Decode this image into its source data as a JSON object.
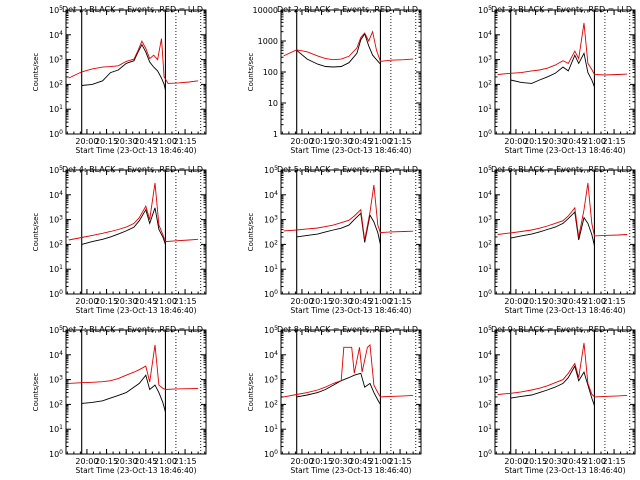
{
  "figure": {
    "x_axis_label": "Start Time (23-Oct-13 18:46:40)",
    "x_tick_labels": [
      "20:00",
      "20:15",
      "20:30",
      "20:45",
      "21:00",
      "21:15"
    ],
    "series_colors": {
      "events": "#000000",
      "lld": "#e00000"
    },
    "marker_lines": {
      "solid": [
        "19:56",
        "21:00"
      ],
      "dotted": [
        "21:08",
        "21:27"
      ]
    }
  },
  "chart_data": [
    {
      "type": "line",
      "title": "Det 1: BLACK = Events, RED = LLD",
      "ylabel": "Counts/sec",
      "yscale": "log",
      "ylim": [
        1,
        100000
      ],
      "ytick_labels": [
        "10^0",
        "10^1",
        "10^2",
        "10^3",
        "10^4",
        "10^5"
      ],
      "xlim": [
        "19:44",
        "21:31"
      ],
      "series": [
        {
          "name": "Events",
          "color": "#000000",
          "x": [
            "19:56",
            "20:04",
            "20:12",
            "20:18",
            "20:24",
            "20:30",
            "20:36",
            "20:39",
            "20:42",
            "20:45",
            "20:48",
            "20:51",
            "20:54",
            "20:57",
            "20:59",
            "21:00"
          ],
          "values": [
            90,
            100,
            140,
            300,
            380,
            700,
            900,
            2000,
            4000,
            2000,
            800,
            500,
            350,
            180,
            100,
            60
          ]
        },
        {
          "name": "LLD",
          "color": "#e00000",
          "x": [
            "19:46",
            "19:56",
            "20:04",
            "20:12",
            "20:18",
            "20:24",
            "20:30",
            "20:36",
            "20:39",
            "20:42",
            "20:45",
            "20:48",
            "20:51",
            "20:54",
            "20:57",
            "20:59",
            "21:02",
            "21:10",
            "21:18",
            "21:25"
          ],
          "values": [
            180,
            320,
            420,
            500,
            520,
            560,
            850,
            1050,
            2300,
            5500,
            2800,
            1100,
            1500,
            1000,
            7000,
            200,
            110,
            115,
            125,
            140
          ]
        }
      ]
    },
    {
      "type": "line",
      "title": "Det 2: BLACK = Events, RED = LLD",
      "ylabel": "Counts/sec",
      "yscale": "log",
      "ylim": [
        1,
        10000
      ],
      "ytick_labels": [
        "1",
        "10",
        "100",
        "1000",
        "10000"
      ],
      "xlim": [
        "19:44",
        "21:31"
      ],
      "series": [
        {
          "name": "Events",
          "color": "#000000",
          "x": [
            "19:56",
            "20:04",
            "20:12",
            "20:18",
            "20:24",
            "20:30",
            "20:36",
            "20:42",
            "20:45",
            "20:48",
            "20:51",
            "20:54",
            "20:57",
            "21:00"
          ],
          "values": [
            500,
            260,
            180,
            150,
            145,
            150,
            200,
            400,
            1100,
            1700,
            700,
            350,
            250,
            180
          ]
        },
        {
          "name": "LLD",
          "color": "#e00000",
          "x": [
            "19:46",
            "19:56",
            "20:04",
            "20:12",
            "20:18",
            "20:24",
            "20:30",
            "20:36",
            "20:42",
            "20:45",
            "20:48",
            "20:51",
            "20:54",
            "20:57",
            "21:00",
            "21:08",
            "21:18",
            "21:25"
          ],
          "values": [
            330,
            520,
            450,
            330,
            270,
            250,
            260,
            320,
            600,
            1300,
            1800,
            1000,
            2000,
            500,
            220,
            240,
            250,
            260
          ]
        }
      ]
    },
    {
      "type": "line",
      "title": "Det 3: BLACK = Events, RED = LLD",
      "ylabel": "",
      "yscale": "log",
      "ylim": [
        1,
        100000
      ],
      "ytick_labels": [
        "10^0",
        "10^1",
        "10^2",
        "10^3",
        "10^4",
        "10^5"
      ],
      "xlim": [
        "19:44",
        "21:31"
      ],
      "series": [
        {
          "name": "Events",
          "color": "#000000",
          "x": [
            "19:56",
            "20:04",
            "20:12",
            "20:18",
            "20:24",
            "20:30",
            "20:36",
            "20:40",
            "20:45",
            "20:48",
            "20:52",
            "20:55",
            "20:58",
            "21:00"
          ],
          "values": [
            150,
            120,
            110,
            150,
            200,
            280,
            500,
            350,
            1500,
            700,
            1800,
            300,
            150,
            80
          ]
        },
        {
          "name": "LLD",
          "color": "#e00000",
          "x": [
            "19:46",
            "19:56",
            "20:04",
            "20:12",
            "20:18",
            "20:24",
            "20:30",
            "20:36",
            "20:40",
            "20:45",
            "20:48",
            "20:52",
            "20:55",
            "20:58",
            "21:00",
            "21:08",
            "21:18",
            "21:25"
          ],
          "values": [
            250,
            280,
            300,
            350,
            380,
            450,
            600,
            900,
            700,
            2200,
            1100,
            30000,
            700,
            400,
            250,
            240,
            250,
            260
          ]
        }
      ]
    },
    {
      "type": "line",
      "title": "Det 4: BLACK = Events, RED = LLD",
      "ylabel": "Counts/sec",
      "yscale": "log",
      "ylim": [
        1,
        100000
      ],
      "ytick_labels": [
        "10^0",
        "10^1",
        "10^2",
        "10^3",
        "10^4",
        "10^5"
      ],
      "xlim": [
        "19:44",
        "21:31"
      ],
      "series": [
        {
          "name": "Events",
          "color": "#000000",
          "x": [
            "19:56",
            "20:04",
            "20:12",
            "20:18",
            "20:24",
            "20:30",
            "20:36",
            "20:40",
            "20:45",
            "20:48",
            "20:52",
            "20:55",
            "20:58",
            "21:00"
          ],
          "values": [
            100,
            130,
            160,
            200,
            260,
            350,
            500,
            900,
            2500,
            700,
            3000,
            400,
            200,
            100
          ]
        },
        {
          "name": "LLD",
          "color": "#e00000",
          "x": [
            "19:46",
            "19:56",
            "20:04",
            "20:12",
            "20:18",
            "20:24",
            "20:30",
            "20:36",
            "20:40",
            "20:45",
            "20:48",
            "20:52",
            "20:55",
            "20:58",
            "21:00",
            "21:08",
            "21:18",
            "21:25"
          ],
          "values": [
            150,
            190,
            230,
            280,
            330,
            400,
            500,
            700,
            1200,
            3500,
            1000,
            30000,
            600,
            250,
            130,
            140,
            150,
            160
          ]
        }
      ]
    },
    {
      "type": "line",
      "title": "Det 5: BLACK = Events, RED = LLD",
      "ylabel": "Counts/sec",
      "yscale": "log",
      "ylim": [
        1,
        100000
      ],
      "ytick_labels": [
        "10^0",
        "10^1",
        "10^2",
        "10^3",
        "10^4",
        "10^5"
      ],
      "xlim": [
        "19:44",
        "21:31"
      ],
      "series": [
        {
          "name": "Events",
          "color": "#000000",
          "x": [
            "19:56",
            "20:04",
            "20:12",
            "20:18",
            "20:24",
            "20:30",
            "20:36",
            "20:40",
            "20:45",
            "20:48",
            "20:52",
            "20:55",
            "20:58",
            "21:00"
          ],
          "values": [
            200,
            230,
            260,
            320,
            380,
            450,
            600,
            1000,
            1800,
            120,
            1500,
            800,
            300,
            100
          ]
        },
        {
          "name": "LLD",
          "color": "#e00000",
          "x": [
            "19:46",
            "19:56",
            "20:04",
            "20:12",
            "20:18",
            "20:24",
            "20:30",
            "20:36",
            "20:40",
            "20:45",
            "20:48",
            "20:52",
            "20:55",
            "20:58",
            "21:00",
            "21:08",
            "21:18",
            "21:25"
          ],
          "values": [
            350,
            380,
            420,
            460,
            520,
            600,
            750,
            950,
            1400,
            2500,
            150,
            2000,
            25000,
            600,
            300,
            320,
            330,
            340
          ]
        }
      ]
    },
    {
      "type": "line",
      "title": "Det 6: BLACK = Events, RED = LLD",
      "ylabel": "",
      "yscale": "log",
      "ylim": [
        1,
        100000
      ],
      "ytick_labels": [
        "10^0",
        "10^1",
        "10^2",
        "10^3",
        "10^4",
        "10^5"
      ],
      "xlim": [
        "19:44",
        "21:31"
      ],
      "series": [
        {
          "name": "Events",
          "color": "#000000",
          "x": [
            "19:56",
            "20:04",
            "20:12",
            "20:18",
            "20:24",
            "20:30",
            "20:36",
            "20:40",
            "20:45",
            "20:48",
            "20:52",
            "20:55",
            "20:58",
            "21:00"
          ],
          "values": [
            180,
            220,
            260,
            320,
            400,
            500,
            700,
            1100,
            2000,
            150,
            1200,
            700,
            250,
            90
          ]
        },
        {
          "name": "LLD",
          "color": "#e00000",
          "x": [
            "19:46",
            "19:56",
            "20:04",
            "20:12",
            "20:18",
            "20:24",
            "20:30",
            "20:36",
            "20:40",
            "20:45",
            "20:48",
            "20:52",
            "20:55",
            "20:58",
            "21:00",
            "21:08",
            "21:18",
            "21:25"
          ],
          "values": [
            250,
            290,
            330,
            380,
            450,
            550,
            700,
            900,
            1400,
            3000,
            200,
            2500,
            30000,
            700,
            220,
            230,
            240,
            250
          ]
        }
      ]
    },
    {
      "type": "line",
      "title": "Det 7: BLACK = Events, RED = LLD",
      "ylabel": "Counts/sec",
      "yscale": "log",
      "ylim": [
        1,
        100000
      ],
      "ytick_labels": [
        "10^0",
        "10^1",
        "10^2",
        "10^3",
        "10^4",
        "10^5"
      ],
      "xlim": [
        "19:44",
        "21:31"
      ],
      "series": [
        {
          "name": "Events",
          "color": "#000000",
          "x": [
            "19:56",
            "20:04",
            "20:12",
            "20:18",
            "20:24",
            "20:30",
            "20:36",
            "20:40",
            "20:45",
            "20:48",
            "20:52",
            "20:55",
            "20:58",
            "21:00"
          ],
          "values": [
            110,
            120,
            140,
            180,
            230,
            300,
            500,
            700,
            1500,
            400,
            600,
            300,
            120,
            50
          ]
        },
        {
          "name": "LLD",
          "color": "#e00000",
          "x": [
            "19:46",
            "19:56",
            "20:04",
            "20:12",
            "20:18",
            "20:24",
            "20:30",
            "20:36",
            "20:40",
            "20:45",
            "20:48",
            "20:52",
            "20:55",
            "20:58",
            "21:00",
            "21:08",
            "21:18",
            "21:25"
          ],
          "values": [
            700,
            750,
            780,
            820,
            900,
            1100,
            1500,
            2000,
            2500,
            3500,
            800,
            25000,
            600,
            450,
            400,
            420,
            430,
            440
          ]
        }
      ]
    },
    {
      "type": "line",
      "title": "Det 8: BLACK = Events, RED = LLD",
      "ylabel": "Counts/sec",
      "yscale": "log",
      "ylim": [
        1,
        100000
      ],
      "ytick_labels": [
        "10^0",
        "10^1",
        "10^2",
        "10^3",
        "10^4",
        "10^5"
      ],
      "xlim": [
        "19:44",
        "21:31"
      ],
      "series": [
        {
          "name": "Events",
          "color": "#000000",
          "x": [
            "19:56",
            "20:04",
            "20:12",
            "20:18",
            "20:24",
            "20:30",
            "20:36",
            "20:40",
            "20:45",
            "20:48",
            "20:52",
            "20:55",
            "20:58",
            "21:00"
          ],
          "values": [
            200,
            240,
            300,
            400,
            600,
            900,
            1200,
            1500,
            1800,
            500,
            700,
            300,
            150,
            100
          ]
        },
        {
          "name": "LLD",
          "color": "#e00000",
          "x": [
            "19:46",
            "19:56",
            "20:04",
            "20:12",
            "20:18",
            "20:24",
            "20:30",
            "20:32",
            "20:38",
            "20:40",
            "20:44",
            "20:46",
            "20:50",
            "20:52",
            "20:55",
            "20:58",
            "21:00",
            "21:08",
            "21:18",
            "21:25"
          ],
          "values": [
            200,
            250,
            300,
            380,
            500,
            700,
            900,
            20000,
            20000,
            1800,
            20000,
            2000,
            20000,
            25000,
            600,
            300,
            200,
            210,
            220,
            230
          ]
        }
      ]
    },
    {
      "type": "line",
      "title": "Det 9: BLACK = Events, RED = LLD",
      "ylabel": "",
      "yscale": "log",
      "ylim": [
        1,
        100000
      ],
      "ytick_labels": [
        "10^0",
        "10^1",
        "10^2",
        "10^3",
        "10^4",
        "10^5"
      ],
      "xlim": [
        "19:44",
        "21:31"
      ],
      "series": [
        {
          "name": "Events",
          "color": "#000000",
          "x": [
            "19:56",
            "20:04",
            "20:12",
            "20:18",
            "20:24",
            "20:30",
            "20:36",
            "20:40",
            "20:45",
            "20:48",
            "20:52",
            "20:55",
            "20:58",
            "21:00"
          ],
          "values": [
            180,
            210,
            240,
            300,
            380,
            500,
            700,
            1200,
            3500,
            900,
            2000,
            600,
            180,
            90
          ]
        },
        {
          "name": "LLD",
          "color": "#e00000",
          "x": [
            "19:46",
            "19:56",
            "20:04",
            "20:12",
            "20:18",
            "20:24",
            "20:30",
            "20:36",
            "20:40",
            "20:45",
            "20:48",
            "20:52",
            "20:55",
            "20:58",
            "21:00",
            "21:08",
            "21:18",
            "21:25"
          ],
          "values": [
            250,
            280,
            320,
            380,
            450,
            560,
            750,
            1000,
            1800,
            4500,
            1200,
            30000,
            700,
            260,
            200,
            210,
            220,
            230
          ]
        }
      ]
    }
  ]
}
